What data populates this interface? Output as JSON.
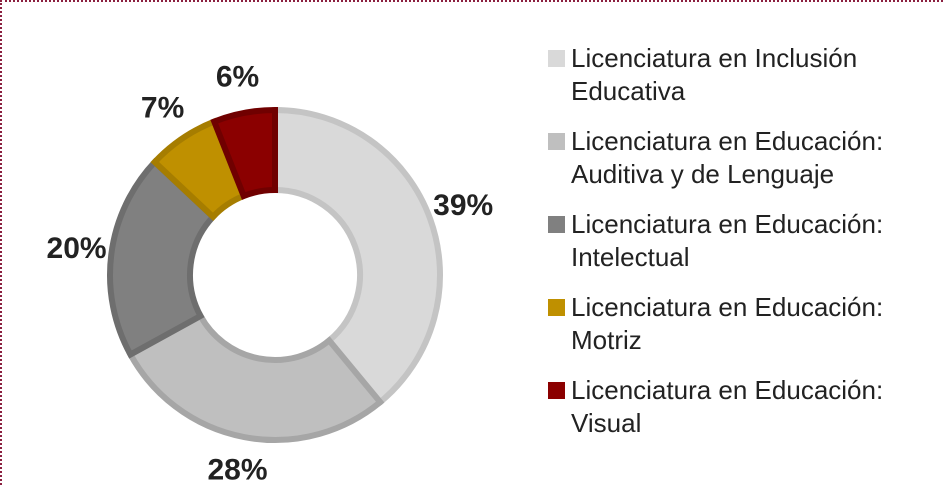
{
  "chart_data": {
    "type": "donut",
    "categories": [
      "Licenciatura en Inclusión Educativa",
      "Licenciatura en Educación: Auditiva y de Lenguaje",
      "Licenciatura en Educación: Intelectual",
      "Licenciatura en Educación: Motriz",
      "Licenciatura en Educación: Visual"
    ],
    "values": [
      39,
      28,
      20,
      7,
      6
    ],
    "value_labels": [
      "39%",
      "28%",
      "20%",
      "7%",
      "6%"
    ],
    "colors": [
      "#d9d9d9",
      "#bfbfbf",
      "#808080",
      "#bf9000",
      "#8b0000"
    ],
    "stroke_colors": [
      "#c4c4c4",
      "#a6a6a6",
      "#6e6e6e",
      "#a67d00",
      "#700000"
    ],
    "legend": "right"
  }
}
